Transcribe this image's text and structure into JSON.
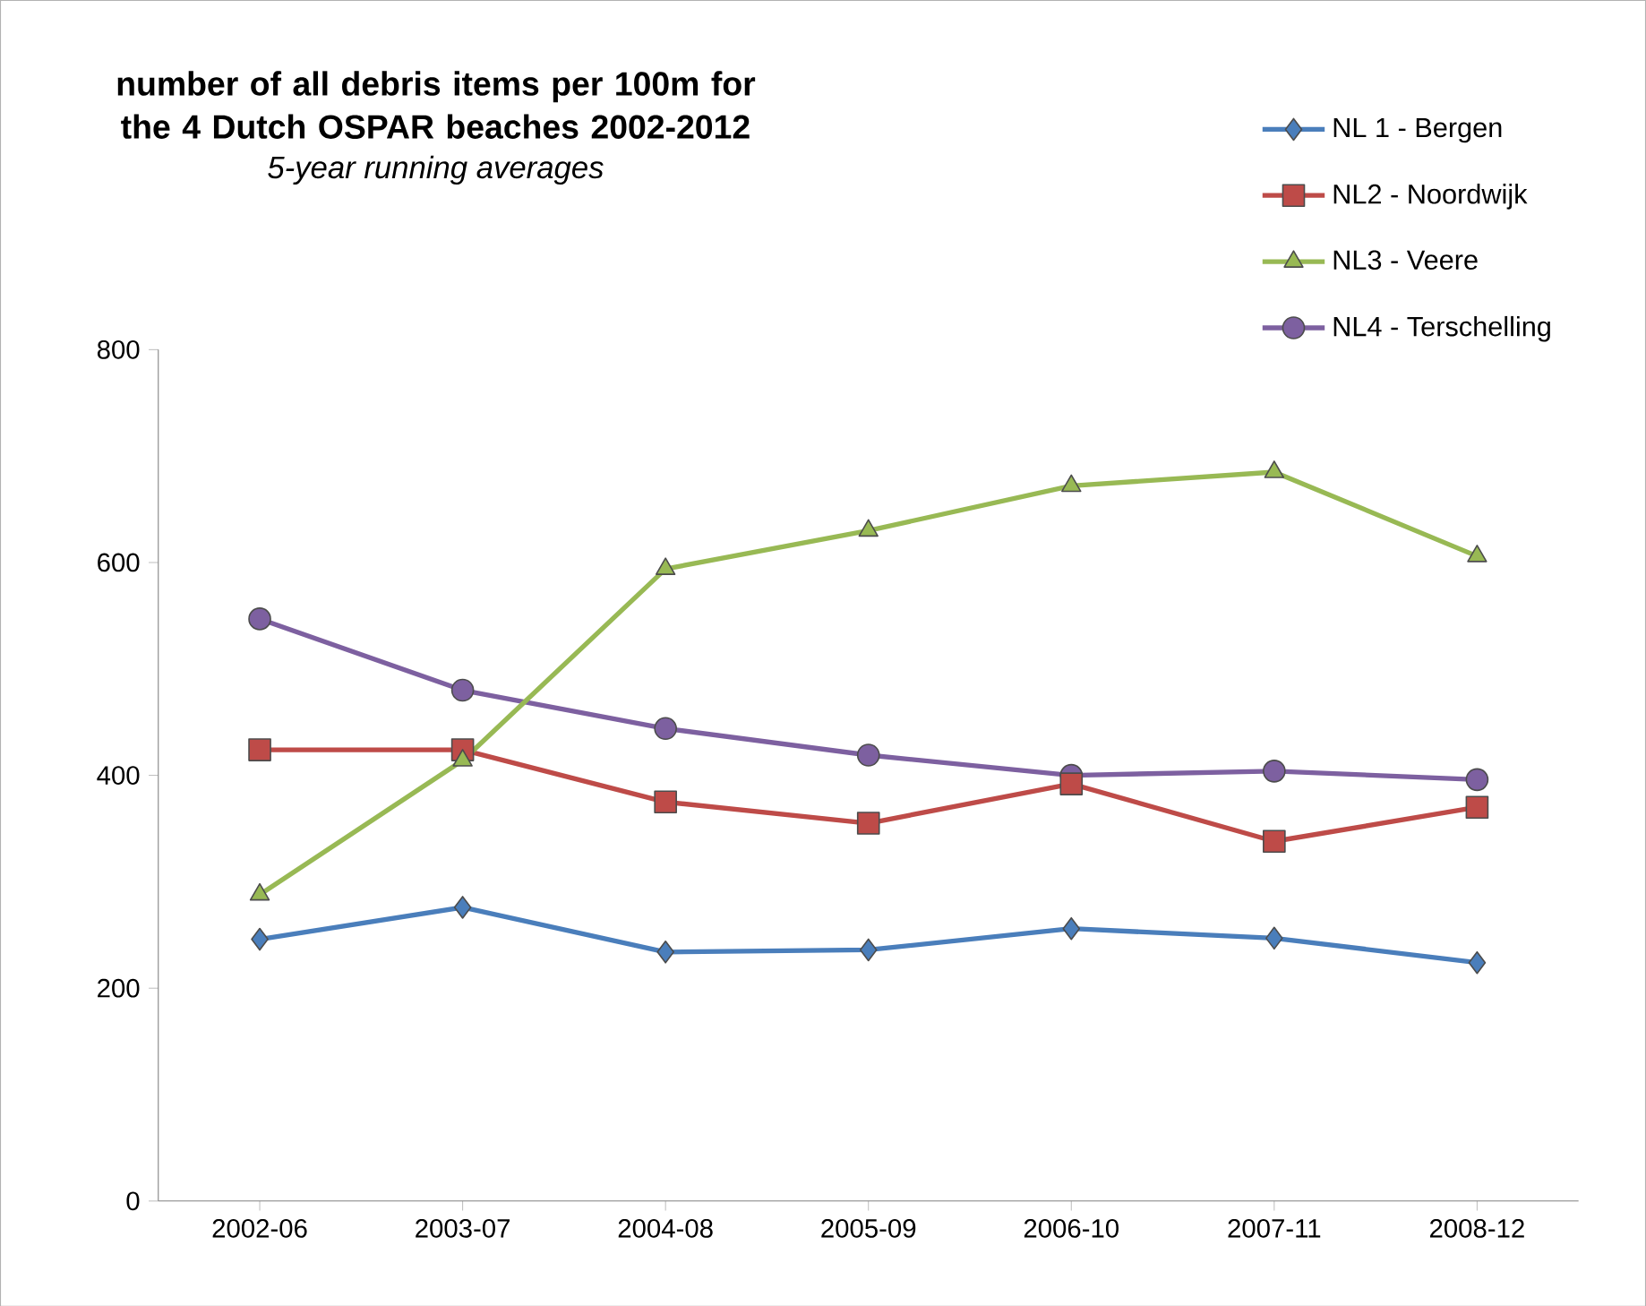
{
  "chart_data": {
    "type": "line",
    "title": "number of all debris items per 100m for the 4 Dutch OSPAR beaches 2002-2012",
    "subtitle": "5-year running averages",
    "categories": [
      "2002-06",
      "2003-07",
      "2004-08",
      "2005-09",
      "2006-10",
      "2007-11",
      "2008-12"
    ],
    "series": [
      {
        "name": "NL 1 - Bergen",
        "color": "#4a7ebb",
        "marker": "diamond",
        "values": [
          246,
          276,
          234,
          236,
          256,
          247,
          224
        ]
      },
      {
        "name": "NL2 - Noordwijk",
        "color": "#be4b48",
        "marker": "square",
        "values": [
          424,
          424,
          375,
          355,
          392,
          338,
          370
        ]
      },
      {
        "name": "NL3 - Veere",
        "color": "#98b954",
        "marker": "triangle",
        "values": [
          288,
          414,
          594,
          630,
          672,
          685,
          606
        ]
      },
      {
        "name": "NL4 - Terschelling",
        "color": "#7d60a0",
        "marker": "circle",
        "values": [
          547,
          480,
          444,
          419,
          400,
          404,
          396
        ]
      }
    ],
    "ylim": [
      0,
      800
    ],
    "yticks": [
      0,
      200,
      400,
      600,
      800
    ],
    "grid": false,
    "legend": "top right"
  }
}
